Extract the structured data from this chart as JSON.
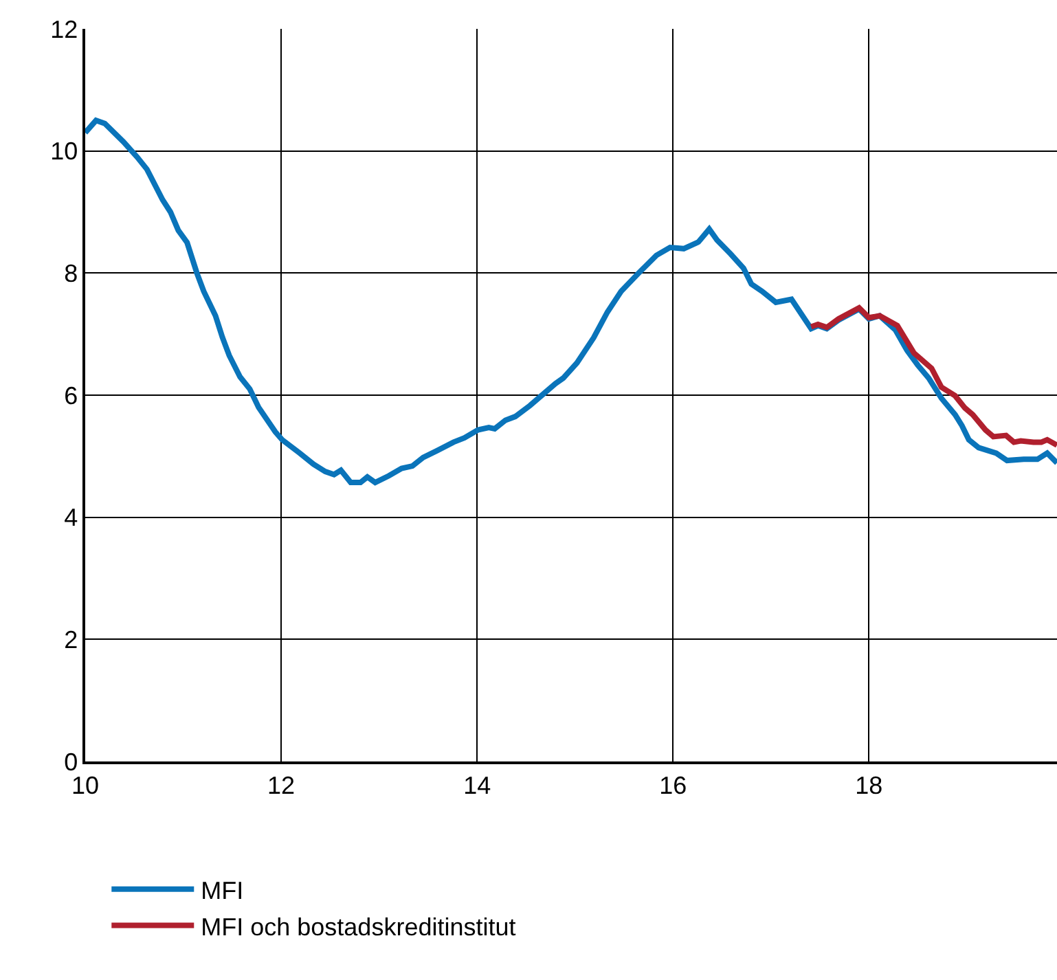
{
  "chart_data": {
    "type": "line",
    "xlim": [
      10,
      19.92
    ],
    "xticks": [
      10,
      12,
      14,
      16,
      18
    ],
    "ylim": [
      0,
      12
    ],
    "yticks": [
      0,
      2,
      4,
      6,
      8,
      10,
      12
    ],
    "grid": true,
    "legend": "bottom left",
    "marker": "none",
    "line_style": "solid",
    "series": [
      {
        "name": "MFI",
        "color": "#0a74ba",
        "x": [
          10.0,
          10.11,
          10.2,
          10.39,
          10.53,
          10.63,
          10.79,
          10.87,
          10.95,
          11.04,
          11.14,
          11.21,
          11.33,
          11.4,
          11.47,
          11.58,
          11.68,
          11.77,
          11.94,
          12.01,
          12.1,
          12.19,
          12.33,
          12.45,
          12.54,
          12.61,
          12.71,
          12.81,
          12.88,
          12.96,
          13.1,
          13.23,
          13.34,
          13.45,
          13.59,
          13.76,
          13.87,
          14.01,
          14.12,
          14.18,
          14.29,
          14.39,
          14.54,
          14.67,
          14.8,
          14.88,
          15.02,
          15.19,
          15.33,
          15.47,
          15.65,
          15.83,
          15.97,
          16.11,
          16.26,
          16.37,
          16.45,
          16.59,
          16.72,
          16.8,
          16.91,
          17.05,
          17.21,
          17.41,
          17.48,
          17.57,
          17.69,
          17.9,
          18.0,
          18.11,
          18.27,
          18.39,
          18.5,
          18.61,
          18.74,
          18.88,
          18.95,
          19.02,
          19.12,
          19.3,
          19.41,
          19.58,
          19.72,
          19.82,
          19.92
        ],
        "values": [
          10.3,
          10.5,
          10.45,
          10.15,
          9.9,
          9.7,
          9.2,
          9.0,
          8.7,
          8.5,
          8.0,
          7.7,
          7.3,
          6.95,
          6.65,
          6.3,
          6.1,
          5.8,
          5.4,
          5.27,
          5.16,
          5.05,
          4.87,
          4.75,
          4.7,
          4.77,
          4.57,
          4.57,
          4.66,
          4.57,
          4.68,
          4.8,
          4.84,
          4.98,
          5.09,
          5.23,
          5.3,
          5.43,
          5.47,
          5.45,
          5.59,
          5.65,
          5.83,
          6.01,
          6.19,
          6.28,
          6.53,
          6.94,
          7.36,
          7.7,
          8.0,
          8.29,
          8.42,
          8.4,
          8.51,
          8.72,
          8.54,
          8.31,
          8.08,
          7.82,
          7.7,
          7.52,
          7.57,
          7.09,
          7.14,
          7.09,
          7.23,
          7.41,
          7.25,
          7.3,
          7.07,
          6.73,
          6.49,
          6.28,
          5.95,
          5.68,
          5.5,
          5.27,
          5.14,
          5.05,
          4.93,
          4.95,
          4.95,
          5.05,
          4.89
        ]
      },
      {
        "name": "MFI och bostadskreditinstitut",
        "color": "#b0202e",
        "x": [
          17.41,
          17.48,
          17.57,
          17.69,
          17.9,
          18.0,
          18.11,
          18.29,
          18.46,
          18.64,
          18.74,
          18.88,
          18.98,
          19.06,
          19.19,
          19.27,
          19.4,
          19.48,
          19.55,
          19.68,
          19.76,
          19.82,
          19.92
        ],
        "values": [
          7.12,
          7.16,
          7.11,
          7.25,
          7.43,
          7.27,
          7.3,
          7.14,
          6.69,
          6.44,
          6.13,
          5.99,
          5.79,
          5.68,
          5.43,
          5.32,
          5.34,
          5.23,
          5.25,
          5.23,
          5.23,
          5.27,
          5.18
        ]
      }
    ]
  }
}
